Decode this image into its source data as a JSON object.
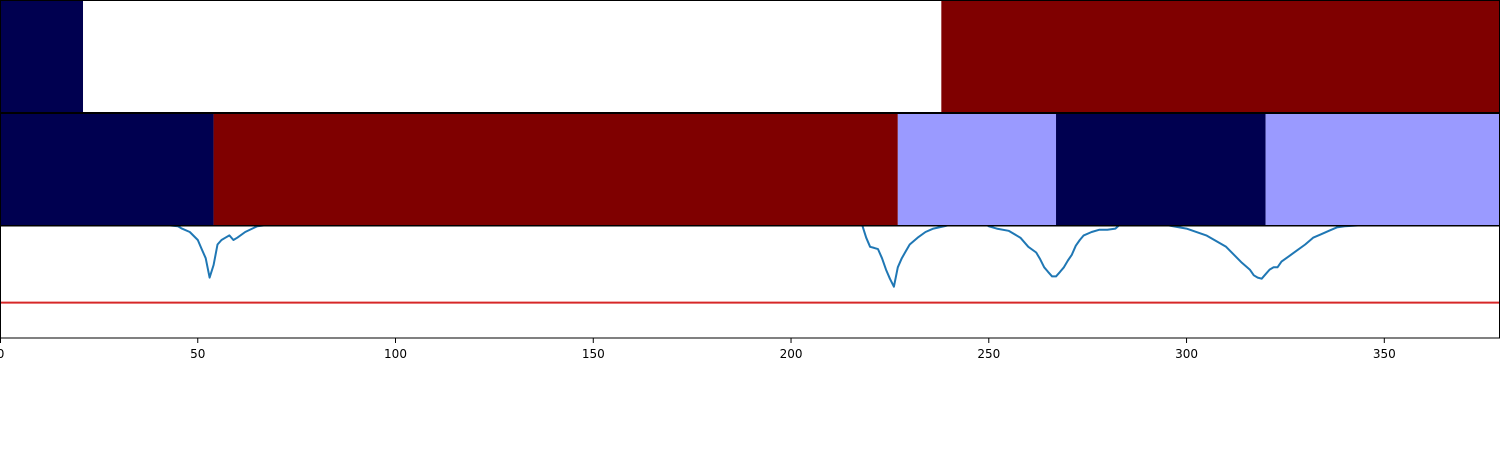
{
  "chart_data": {
    "type": "line",
    "xlim": [
      0,
      379
    ],
    "grid": false,
    "legend": "none",
    "xticks": [
      "0",
      "50",
      "100",
      "150",
      "200",
      "250",
      "300",
      "350"
    ],
    "colors": {
      "navy": "#000050",
      "white": "#ffffff",
      "maroon": "#7f0000",
      "lavender": "#9a9aff",
      "signal": "#1f77b4",
      "threshold": "#d62728"
    },
    "segment_rows": [
      {
        "segments": [
          {
            "start": 0,
            "end": 21,
            "color": "#000050"
          },
          {
            "start": 21,
            "end": 238,
            "color": "#ffffff"
          },
          {
            "start": 238,
            "end": 379,
            "color": "#7f0000"
          }
        ]
      },
      {
        "segments": [
          {
            "start": 0,
            "end": 54,
            "color": "#000050"
          },
          {
            "start": 54,
            "end": 227,
            "color": "#7f0000"
          },
          {
            "start": 227,
            "end": 267,
            "color": "#9a9aff"
          },
          {
            "start": 267,
            "end": 320,
            "color": "#000050"
          },
          {
            "start": 320,
            "end": 379,
            "color": "#9a9aff"
          }
        ]
      }
    ],
    "signal_panel": {
      "ylim": [
        0,
        1
      ],
      "threshold": 0.31,
      "series": [
        {
          "x": [
            0,
            40,
            42,
            45,
            46,
            48,
            50,
            51,
            52,
            53,
            54,
            55,
            56,
            57,
            58,
            59,
            60,
            62,
            65,
            70,
            200,
            218,
            219,
            220,
            221,
            222,
            223,
            224,
            225,
            226,
            227,
            228,
            229,
            230,
            232,
            234,
            236,
            240,
            245,
            249,
            250,
            252,
            255,
            258,
            260,
            262,
            263,
            264,
            265,
            266,
            267,
            268,
            269,
            270,
            271,
            272,
            273,
            274,
            276,
            278,
            280,
            282,
            283,
            285,
            290,
            295,
            300,
            305,
            310,
            312,
            314,
            316,
            317,
            318,
            319,
            320,
            321,
            322,
            323,
            324,
            326,
            328,
            330,
            332,
            334,
            336,
            338,
            340,
            345,
            350,
            360,
            379
          ],
          "y": [
            1.0,
            1.0,
            0.99,
            0.98,
            0.96,
            0.93,
            0.86,
            0.78,
            0.7,
            0.53,
            0.64,
            0.82,
            0.86,
            0.88,
            0.9,
            0.86,
            0.88,
            0.93,
            0.98,
            1.0,
            1.0,
            0.99,
            0.88,
            0.8,
            0.79,
            0.78,
            0.7,
            0.6,
            0.52,
            0.45,
            0.62,
            0.7,
            0.76,
            0.82,
            0.88,
            0.93,
            0.96,
            0.99,
            1.0,
            1.0,
            0.98,
            0.96,
            0.94,
            0.88,
            0.8,
            0.75,
            0.69,
            0.62,
            0.58,
            0.54,
            0.54,
            0.58,
            0.62,
            0.68,
            0.73,
            0.81,
            0.86,
            0.9,
            0.93,
            0.95,
            0.95,
            0.96,
            0.99,
            1.0,
            1.0,
            0.99,
            0.96,
            0.9,
            0.8,
            0.73,
            0.66,
            0.6,
            0.55,
            0.53,
            0.52,
            0.56,
            0.6,
            0.62,
            0.62,
            0.67,
            0.72,
            0.77,
            0.82,
            0.88,
            0.91,
            0.94,
            0.97,
            0.98,
            0.99,
            0.99,
            1.0,
            1.0
          ]
        }
      ]
    }
  }
}
